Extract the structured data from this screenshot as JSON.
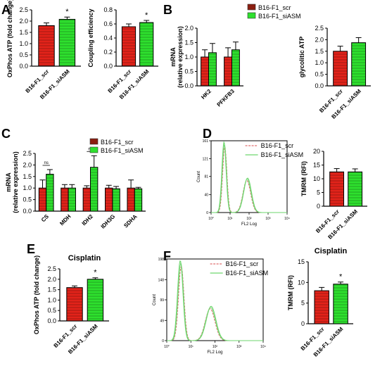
{
  "colors": {
    "scr": "#e2231a",
    "siASM": "#2ee02e",
    "scr_dark": "#8b1e10",
    "siASM_dark": "#1e8a1e",
    "hist_scr": "#e07070",
    "hist_siasm": "#6fd66f"
  },
  "panel_labels": {
    "A": "A",
    "B": "B",
    "C": "C",
    "D": "D",
    "E": "E",
    "F": "F"
  },
  "chart_data": [
    {
      "id": "A1",
      "type": "bar",
      "categories": [
        "B16-F1_scr",
        "B16-F1_siASM"
      ],
      "values": [
        1.8,
        2.08
      ],
      "errors": [
        0.12,
        0.1
      ],
      "ylabel": "OxPhos ATP (fold change)",
      "ylim": [
        0,
        2.5
      ],
      "yticks": [
        "0.0",
        "0.5",
        "1.0",
        "1.5",
        "2.0",
        "2.5"
      ],
      "significance": [
        "",
        "*"
      ]
    },
    {
      "id": "A2",
      "type": "bar",
      "categories": [
        "B16-F1_scr",
        "B16-F1_siASM"
      ],
      "values": [
        0.56,
        0.62
      ],
      "errors": [
        0.04,
        0.03
      ],
      "ylabel": "Coupling efficiency",
      "ylim": [
        0,
        0.8
      ],
      "yticks": [
        "0.0",
        "0.2",
        "0.4",
        "0.6",
        "0.8"
      ],
      "significance": [
        "",
        "*"
      ]
    },
    {
      "id": "B1",
      "type": "bar",
      "categories": [
        "HK2",
        "PFKFB3"
      ],
      "series": [
        {
          "name": "B16-F1_scr",
          "values": [
            1.0,
            1.0
          ],
          "errors": [
            0.25,
            0.32
          ]
        },
        {
          "name": "B16-F1_siASM",
          "values": [
            1.15,
            1.25
          ],
          "errors": [
            0.32,
            0.27
          ]
        }
      ],
      "ylabel": "mRNA (relative expression)",
      "ylim": [
        0,
        2.0
      ],
      "yticks": [
        "0.0",
        "0.5",
        "1.0",
        "1.5",
        "2.0"
      ]
    },
    {
      "id": "B2",
      "type": "bar",
      "categories": [
        "B16-F1_scr",
        "B16-F1_siASM"
      ],
      "values": [
        1.5,
        1.87
      ],
      "errors": [
        0.22,
        0.22
      ],
      "ylabel": "glycolitic ATP",
      "ylim": [
        0,
        2.5
      ],
      "yticks": [
        "0.0",
        "0.5",
        "1.0",
        "1.5",
        "2.0",
        "2.5"
      ]
    },
    {
      "id": "C",
      "type": "bar",
      "categories": [
        "CS",
        "MDH",
        "IDH2",
        "IDH3G",
        "SDHA"
      ],
      "series": [
        {
          "name": "B16-F1_scr",
          "values": [
            1.0,
            1.0,
            1.0,
            1.0,
            1.0
          ],
          "errors": [
            0.35,
            0.15,
            0.1,
            0.12,
            0.35
          ]
        },
        {
          "name": "B16-F1_siASM",
          "values": [
            1.6,
            1.0,
            1.9,
            0.97,
            0.97
          ],
          "errors": [
            0.2,
            0.15,
            0.5,
            0.1,
            0.06
          ]
        }
      ],
      "ylabel": "mRNA (relative expression)",
      "ylim": [
        0,
        2.5
      ],
      "yticks": [
        "0.0",
        "0.5",
        "1.0",
        "1.5",
        "2.0",
        "2.5"
      ],
      "annotations": [
        "ns",
        "ns"
      ]
    },
    {
      "id": "D1",
      "type": "line",
      "xlabel": "FL2 Log",
      "ylabel": "Count",
      "ylim": [
        0,
        161
      ],
      "yticks": [
        "0",
        "40",
        "81",
        "121",
        "161"
      ],
      "xticks": [
        "10°",
        "10¹",
        "10²",
        "10³",
        "10⁴"
      ],
      "series": [
        {
          "name": "B16-F1_scr"
        },
        {
          "name": "B16-F1_siASM"
        }
      ]
    },
    {
      "id": "D2",
      "type": "bar",
      "categories": [
        "B16-F1_scr",
        "B16-F1_siASM"
      ],
      "values": [
        12.5,
        12.5
      ],
      "errors": [
        1.2,
        1.1
      ],
      "ylabel": "TMRM (RFI)",
      "ylim": [
        0,
        20
      ],
      "yticks": [
        "0",
        "5",
        "10",
        "15",
        "20"
      ]
    },
    {
      "id": "E",
      "type": "bar",
      "title": "Cisplatin",
      "categories": [
        "B16-F1_scr",
        "B16-F1_siASM"
      ],
      "values": [
        1.6,
        2.0
      ],
      "errors": [
        0.08,
        0.07
      ],
      "ylabel": "OxPhos ATP (fold change)",
      "ylim": [
        0,
        2.5
      ],
      "yticks": [
        "0.0",
        "0.5",
        "1.0",
        "1.5",
        "2.0",
        "2.5"
      ],
      "significance": [
        "",
        "*"
      ]
    },
    {
      "id": "F1",
      "type": "line",
      "xlabel": "FL2 Log",
      "ylabel": "Count",
      "ylim": [
        0,
        198
      ],
      "yticks": [
        "0",
        "49",
        "99",
        "148",
        "198"
      ],
      "xticks": [
        "10°",
        "10¹",
        "10²",
        "10³",
        "10⁴"
      ],
      "series": [
        {
          "name": "B16-F1_scr"
        },
        {
          "name": "B16-F1_siASM"
        }
      ]
    },
    {
      "id": "F2",
      "type": "bar",
      "title": "Cisplatin",
      "categories": [
        "B16-F1_scr",
        "B16-F1_siASM"
      ],
      "values": [
        8.0,
        9.6
      ],
      "errors": [
        0.8,
        0.5
      ],
      "ylabel": "TMRM (RFI)",
      "ylim": [
        0,
        15
      ],
      "yticks": [
        "0",
        "5",
        "10",
        "15"
      ],
      "significance": [
        "",
        "*"
      ]
    }
  ]
}
